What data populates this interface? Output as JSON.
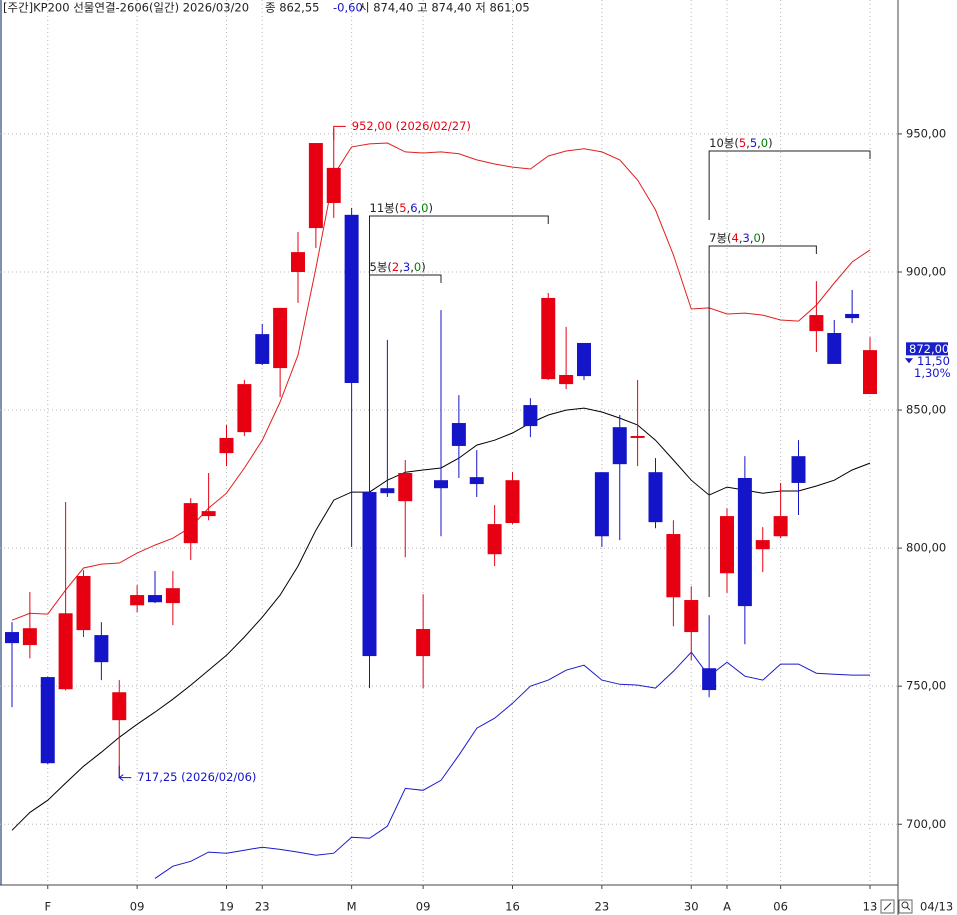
{
  "chart_data": {
    "type": "candlestick",
    "title_parts": [
      "[주간]KP200 선물연결-2606(일간) 2026/03/20",
      "종 862,55",
      "-0,60",
      "시 874,40 고 874,40 저 861,05"
    ],
    "categories": [
      null,
      null,
      "F",
      null,
      null,
      null,
      null,
      "09",
      null,
      null,
      null,
      null,
      "19",
      null,
      "23",
      null,
      null,
      null,
      null,
      "M",
      null,
      null,
      null,
      "09",
      null,
      null,
      null,
      null,
      "16",
      null,
      null,
      null,
      null,
      "23",
      null,
      null,
      null,
      null,
      "30",
      null,
      "A",
      null,
      null,
      "06",
      null,
      null,
      null,
      null,
      "13"
    ],
    "last_date": "04/13",
    "open": [
      769.6,
      764.9,
      753.3,
      748.9,
      770.3,
      768.5,
      737.7,
      779.3,
      783.0,
      780.1,
      801.8,
      811.6,
      834.4,
      842.0,
      877.5,
      865.2,
      900.0,
      915.9,
      925.0,
      920.7,
      820.3,
      821.7,
      817.0,
      760.9,
      824.6,
      845.3,
      825.7,
      797.8,
      809.1,
      851.8,
      861.2,
      859.4,
      874.3,
      827.5,
      843.8,
      839.9,
      827.5,
      782.2,
      769.6,
      756.5,
      790.9,
      825.4,
      799.6,
      804.3,
      833.3,
      878.6,
      877.9,
      884.8,
      855.8
    ],
    "high": [
      773.2,
      784.1,
      753.5,
      816.7,
      792.0,
      773.2,
      752.2,
      786.6,
      791.7,
      791.7,
      818.1,
      827.2,
      844.6,
      860.9,
      881.2,
      887.0,
      914.5,
      946.7,
      952.0,
      923.2,
      850.0,
      875.4,
      831.9,
      783.3,
      886.2,
      855.4,
      835.5,
      815.6,
      827.5,
      854.3,
      892.4,
      880.1,
      874.3,
      827.5,
      848.2,
      860.9,
      832.6,
      810.1,
      786.2,
      775.7,
      814.5,
      833.3,
      807.6,
      823.6,
      839.1,
      896.7,
      882.6,
      893.5,
      876.4
    ],
    "low": [
      742.4,
      760.1,
      721.8,
      748.5,
      767.8,
      752.2,
      717.25,
      776.8,
      780.1,
      772.1,
      795.7,
      810.1,
      829.7,
      840.6,
      866.3,
      854.7,
      888.8,
      908.7,
      919.6,
      800.4,
      749.3,
      818.5,
      796.7,
      749.3,
      804.3,
      825.4,
      818.5,
      793.5,
      808.7,
      840.2,
      860.9,
      857.6,
      860.9,
      800.4,
      802.9,
      829.7,
      807.2,
      771.7,
      759.4,
      746.0,
      783.7,
      765.2,
      791.3,
      803.6,
      812.0,
      871.0,
      866.7,
      881.5,
      855.8
    ],
    "close": [
      765.6,
      771.0,
      722.1,
      776.4,
      789.9,
      758.7,
      747.8,
      783.0,
      780.4,
      785.5,
      816.3,
      813.4,
      839.9,
      859.4,
      866.7,
      887.0,
      907.2,
      946.7,
      937.7,
      859.8,
      760.9,
      819.9,
      827.2,
      770.7,
      821.7,
      837.0,
      823.2,
      808.7,
      824.6,
      844.2,
      890.6,
      862.7,
      862.3,
      804.3,
      830.4,
      840.6,
      809.4,
      805.1,
      781.2,
      748.6,
      811.6,
      779.0,
      802.9,
      811.6,
      823.6,
      884.4,
      866.7,
      883.3,
      871.7
    ],
    "up_color": "#e60012",
    "down_color": "#1414c8",
    "bands": {
      "upper": {
        "color": "#e02020",
        "values": [
          773.9,
          776.4,
          776.1,
          784.8,
          792.8,
          794.2,
          794.6,
          798.2,
          801.1,
          803.6,
          807.6,
          814.5,
          819.9,
          829.0,
          839.1,
          852.9,
          869.9,
          901.4,
          935.1,
          945.3,
          946.4,
          946.7,
          943.5,
          943.1,
          943.5,
          942.8,
          940.6,
          939.1,
          938.0,
          937.3,
          942.0,
          943.8,
          944.6,
          943.5,
          940.6,
          933.3,
          922.5,
          906.2,
          886.6,
          887.0,
          884.8,
          885.1,
          884.4,
          882.6,
          882.2,
          888.0,
          896.0,
          903.6,
          908.0
        ]
      },
      "middle": {
        "color": "#000000",
        "values": [
          697.8,
          704.3,
          708.7,
          714.9,
          721.0,
          726.1,
          731.5,
          736.2,
          740.6,
          745.3,
          750.4,
          755.8,
          761.2,
          767.8,
          775.0,
          783.0,
          793.5,
          806.5,
          817.4,
          820.3,
          820.3,
          824.6,
          827.5,
          828.3,
          829.0,
          832.6,
          837.3,
          839.1,
          841.7,
          845.3,
          848.2,
          850.0,
          850.7,
          849.3,
          847.1,
          844.6,
          839.1,
          831.9,
          824.6,
          819.2,
          822.1,
          821.0,
          819.9,
          820.7,
          820.7,
          822.5,
          824.6,
          828.3,
          830.8
        ]
      },
      "lower": {
        "color": "#1a1acc",
        "values": [
          null,
          null,
          null,
          null,
          null,
          null,
          null,
          null,
          680.4,
          684.8,
          686.6,
          689.9,
          689.5,
          690.6,
          691.7,
          690.9,
          689.9,
          688.8,
          689.5,
          695.3,
          694.9,
          699.3,
          713.0,
          712.3,
          715.9,
          725.0,
          734.8,
          738.4,
          743.8,
          750.0,
          752.2,
          755.8,
          757.6,
          752.2,
          750.7,
          750.4,
          749.3,
          755.4,
          762.3,
          753.6,
          758.7,
          753.6,
          752.2,
          758.0,
          758.0,
          754.7,
          754.3,
          754.0,
          754.0
        ]
      }
    },
    "ylim": [
      678,
      998.5
    ],
    "yticks": [
      {
        "value": 700,
        "label": "700,00"
      },
      {
        "value": 750,
        "label": "750,00"
      },
      {
        "value": 800,
        "label": "800,00"
      },
      {
        "value": 850,
        "label": "850,00"
      },
      {
        "value": 900,
        "label": "900,00"
      },
      {
        "value": 950,
        "label": "950,00"
      }
    ],
    "grid": true,
    "high_note": "952,00 (2026/02/27)",
    "low_note": "717,25 (2026/02/06)",
    "brackets": [
      {
        "parts": [
          "11봉(",
          "5",
          ",",
          "6",
          ",",
          "0",
          ")"
        ]
      },
      {
        "parts": [
          "5봉(",
          "2",
          ",",
          "3",
          ",",
          "0",
          ")"
        ]
      },
      {
        "parts": [
          "10봉(",
          "5",
          ",",
          "5",
          ",",
          "0",
          ")"
        ]
      },
      {
        "parts": [
          "7봉(",
          "4",
          ",",
          "3",
          ",",
          "0",
          ")"
        ]
      }
    ],
    "last_price": {
      "value": 872,
      "label": "872,00"
    },
    "change": {
      "value": -11.5,
      "label": "11,50"
    },
    "change_pct": {
      "value": 1.3,
      "label": "1,30%"
    }
  }
}
